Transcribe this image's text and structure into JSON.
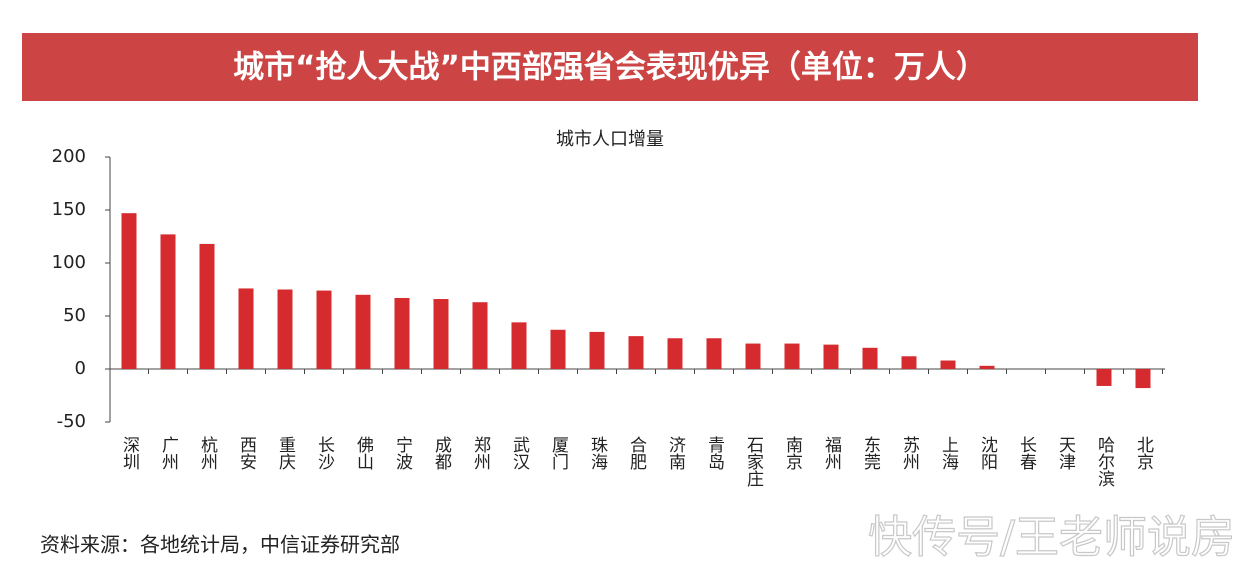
{
  "chart_data": {
    "type": "bar",
    "banner": "城市“抢人大战”中西部强省会表现优异（单位：万人）",
    "title": "城市人口增量",
    "categories": [
      "深圳",
      "广州",
      "杭州",
      "西安",
      "重庆",
      "长沙",
      "佛山",
      "宁波",
      "成都",
      "郑州",
      "武汉",
      "厦门",
      "珠海",
      "合肥",
      "济南",
      "青岛",
      "石家庄",
      "南京",
      "福州",
      "东莞",
      "苏州",
      "上海",
      "沈阳",
      "长春",
      "天津",
      "哈尔滨",
      "北京"
    ],
    "values": [
      147,
      127,
      118,
      76,
      75,
      74,
      70,
      67,
      66,
      63,
      44,
      37,
      35,
      31,
      29,
      29,
      24,
      24,
      23,
      20,
      12,
      8,
      3,
      0,
      0,
      -16,
      -18
    ],
    "color": "#d52a2e",
    "ylim": [
      -50,
      200
    ],
    "yticks": [
      -50,
      0,
      50,
      100,
      150,
      200
    ],
    "source": "资料来源：各地统计局，中信证券研究部",
    "watermark": "快传号/王老师说房"
  }
}
